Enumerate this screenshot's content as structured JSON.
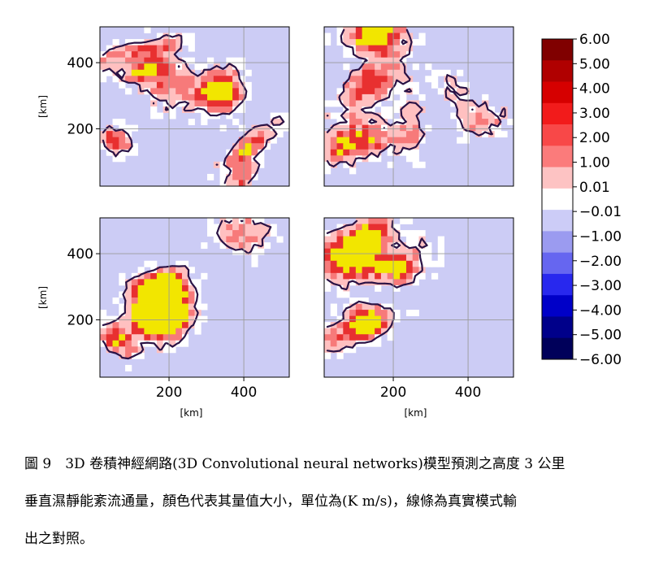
{
  "figure": {
    "unit_label": "[km]",
    "panels": [
      {
        "name": "top-left",
        "y_ticks": [
          "400",
          "200"
        ],
        "x_ticks": [],
        "show_ylabel": true,
        "show_xlabel": false,
        "seed": 11
      },
      {
        "name": "top-right",
        "y_ticks": [],
        "x_ticks": [],
        "show_ylabel": false,
        "show_xlabel": false,
        "seed": 23
      },
      {
        "name": "bottom-left",
        "y_ticks": [
          "400",
          "200"
        ],
        "x_ticks": [
          "200",
          "400"
        ],
        "show_ylabel": true,
        "show_xlabel": true,
        "seed": 37
      },
      {
        "name": "bottom-right",
        "y_ticks": [],
        "x_ticks": [
          "200",
          "400"
        ],
        "show_ylabel": false,
        "show_xlabel": true,
        "seed": 53
      }
    ],
    "colorbar": {
      "tick_labels": [
        "6.00",
        "5.00",
        "4.00",
        "3.00",
        "2.00",
        "1.00",
        "0.01",
        "−0.01",
        "−1.00",
        "−2.00",
        "−3.00",
        "−4.00",
        "−5.00",
        "−6.00"
      ],
      "colors": [
        "#800000",
        "#b00000",
        "#d60000",
        "#f21b1b",
        "#f84848",
        "#fb7b7b",
        "#fdc3c3",
        "#ffffff",
        "#ccccf7",
        "#9b9bf0",
        "#6666f0",
        "#2828ee",
        "#0000c8",
        "#00008a",
        "#00005a"
      ]
    },
    "field_colors": {
      "background": "#ccccf5",
      "zero": "#ffffff",
      "light_pos": "#ffc0c0",
      "mid_pos": "#f77a7a",
      "strong_pos": "#e83030",
      "peak": "#f2e600",
      "contour": "#2a1245"
    }
  },
  "caption": {
    "line1": "圖 9　3D 卷積神經網路(3D Convolutional neural networks)模型預測之高度 3 公里",
    "line2": "垂直濕靜能紊流通量，顏色代表其量值大小，單位為(K m/s)，線條為真實模式輸",
    "line3": "出之對照。"
  }
}
